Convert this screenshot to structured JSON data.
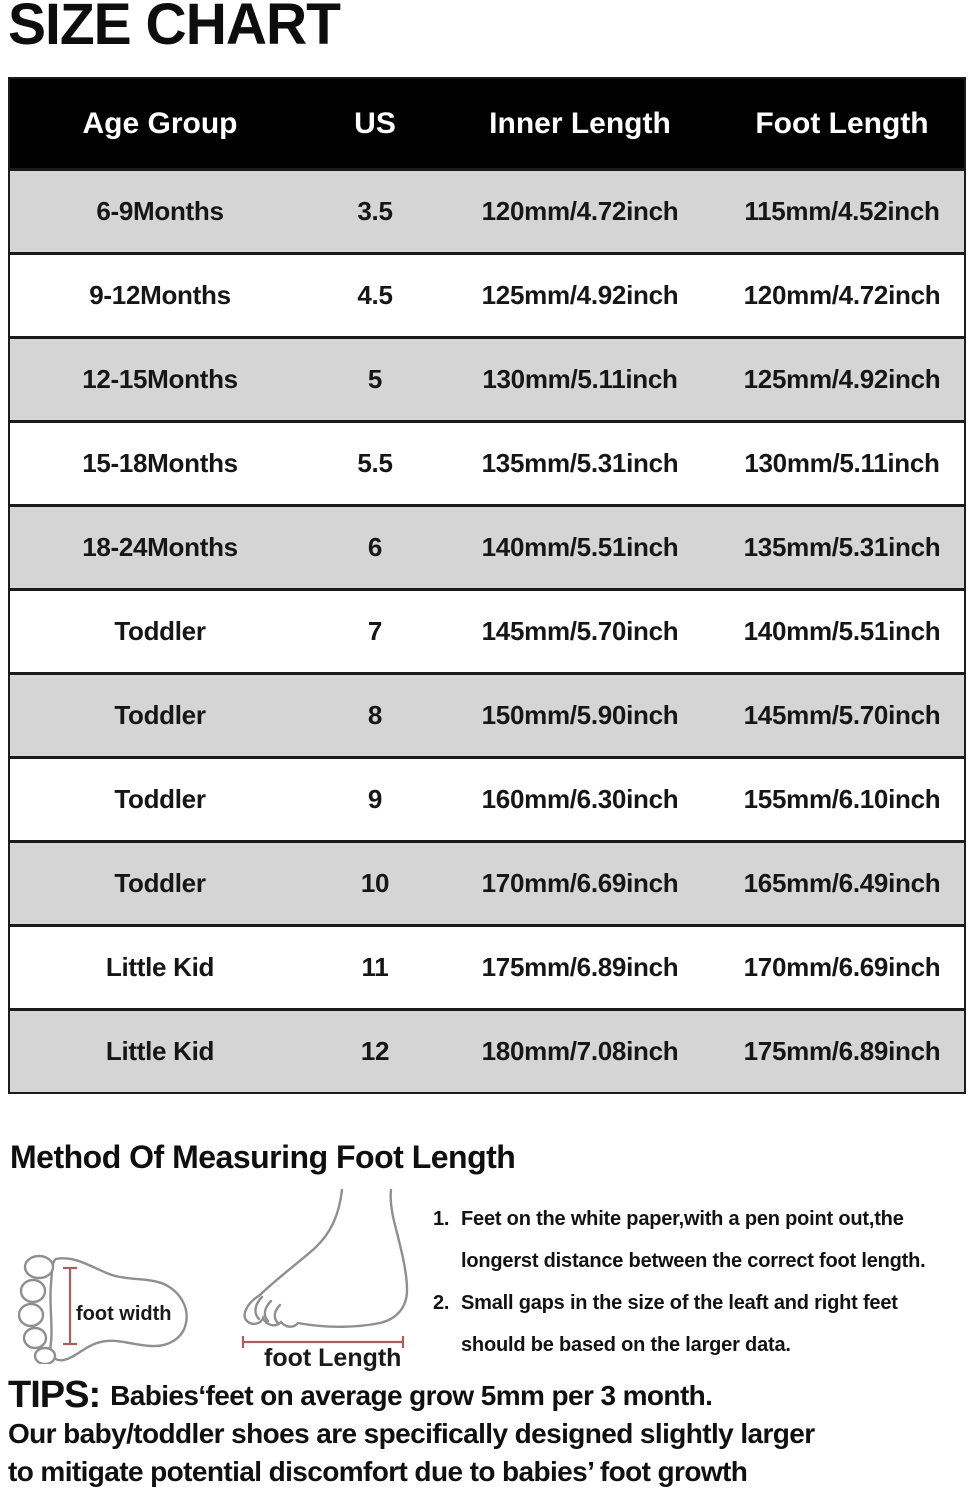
{
  "title": "SIZE CHART",
  "table": {
    "headers": [
      "Age Group",
      "US",
      "Inner Length",
      "Foot Length"
    ],
    "rows": [
      {
        "age": "6-9Months",
        "us": "3.5",
        "inner": "120mm/4.72inch",
        "foot": "115mm/4.52inch"
      },
      {
        "age": "9-12Months",
        "us": "4.5",
        "inner": "125mm/4.92inch",
        "foot": "120mm/4.72inch"
      },
      {
        "age": "12-15Months",
        "us": "5",
        "inner": "130mm/5.11inch",
        "foot": "125mm/4.92inch"
      },
      {
        "age": "15-18Months",
        "us": "5.5",
        "inner": "135mm/5.31inch",
        "foot": "130mm/5.11inch"
      },
      {
        "age": "18-24Months",
        "us": "6",
        "inner": "140mm/5.51inch",
        "foot": "135mm/5.31inch"
      },
      {
        "age": "Toddler",
        "us": "7",
        "inner": "145mm/5.70inch",
        "foot": "140mm/5.51inch"
      },
      {
        "age": "Toddler",
        "us": "8",
        "inner": "150mm/5.90inch",
        "foot": "145mm/5.70inch"
      },
      {
        "age": "Toddler",
        "us": "9",
        "inner": "160mm/6.30inch",
        "foot": "155mm/6.10inch"
      },
      {
        "age": "Toddler",
        "us": "10",
        "inner": "170mm/6.69inch",
        "foot": "165mm/6.49inch"
      },
      {
        "age": "Little Kid",
        "us": "11",
        "inner": "175mm/6.89inch",
        "foot": "170mm/6.69inch"
      },
      {
        "age": "Little Kid",
        "us": "12",
        "inner": "180mm/7.08inch",
        "foot": "175mm/6.89inch"
      }
    ]
  },
  "method": {
    "heading": "Method Of Measuring Foot Length",
    "foot_width_label": "foot width",
    "foot_length_label": "foot Length",
    "steps": [
      {
        "num": "1.",
        "line1": "Feet on the white paper,with a pen point out,the",
        "line2": "longerst distance between the correct foot length."
      },
      {
        "num": "2.",
        "line1": "Small gaps in the size of the leaft and right feet",
        "line2": "should be based on the larger data."
      }
    ]
  },
  "tips": {
    "label": "TIPS:",
    "line1": "Babies‘feet on average grow 5mm per 3 month.",
    "line2": "Our baby/toddler shoes are specifically designed slightly larger",
    "line3": "to mitigate potential discomfort due to babies’ foot growth"
  },
  "colors": {
    "row_gray": "#d5d5d5",
    "row_white": "#ffffff",
    "header_bg": "#000000",
    "header_text": "#ffffff",
    "separator": "#1b1b1b",
    "measure_line": "#a85f5f",
    "foot_outline": "#8f8f8f"
  }
}
